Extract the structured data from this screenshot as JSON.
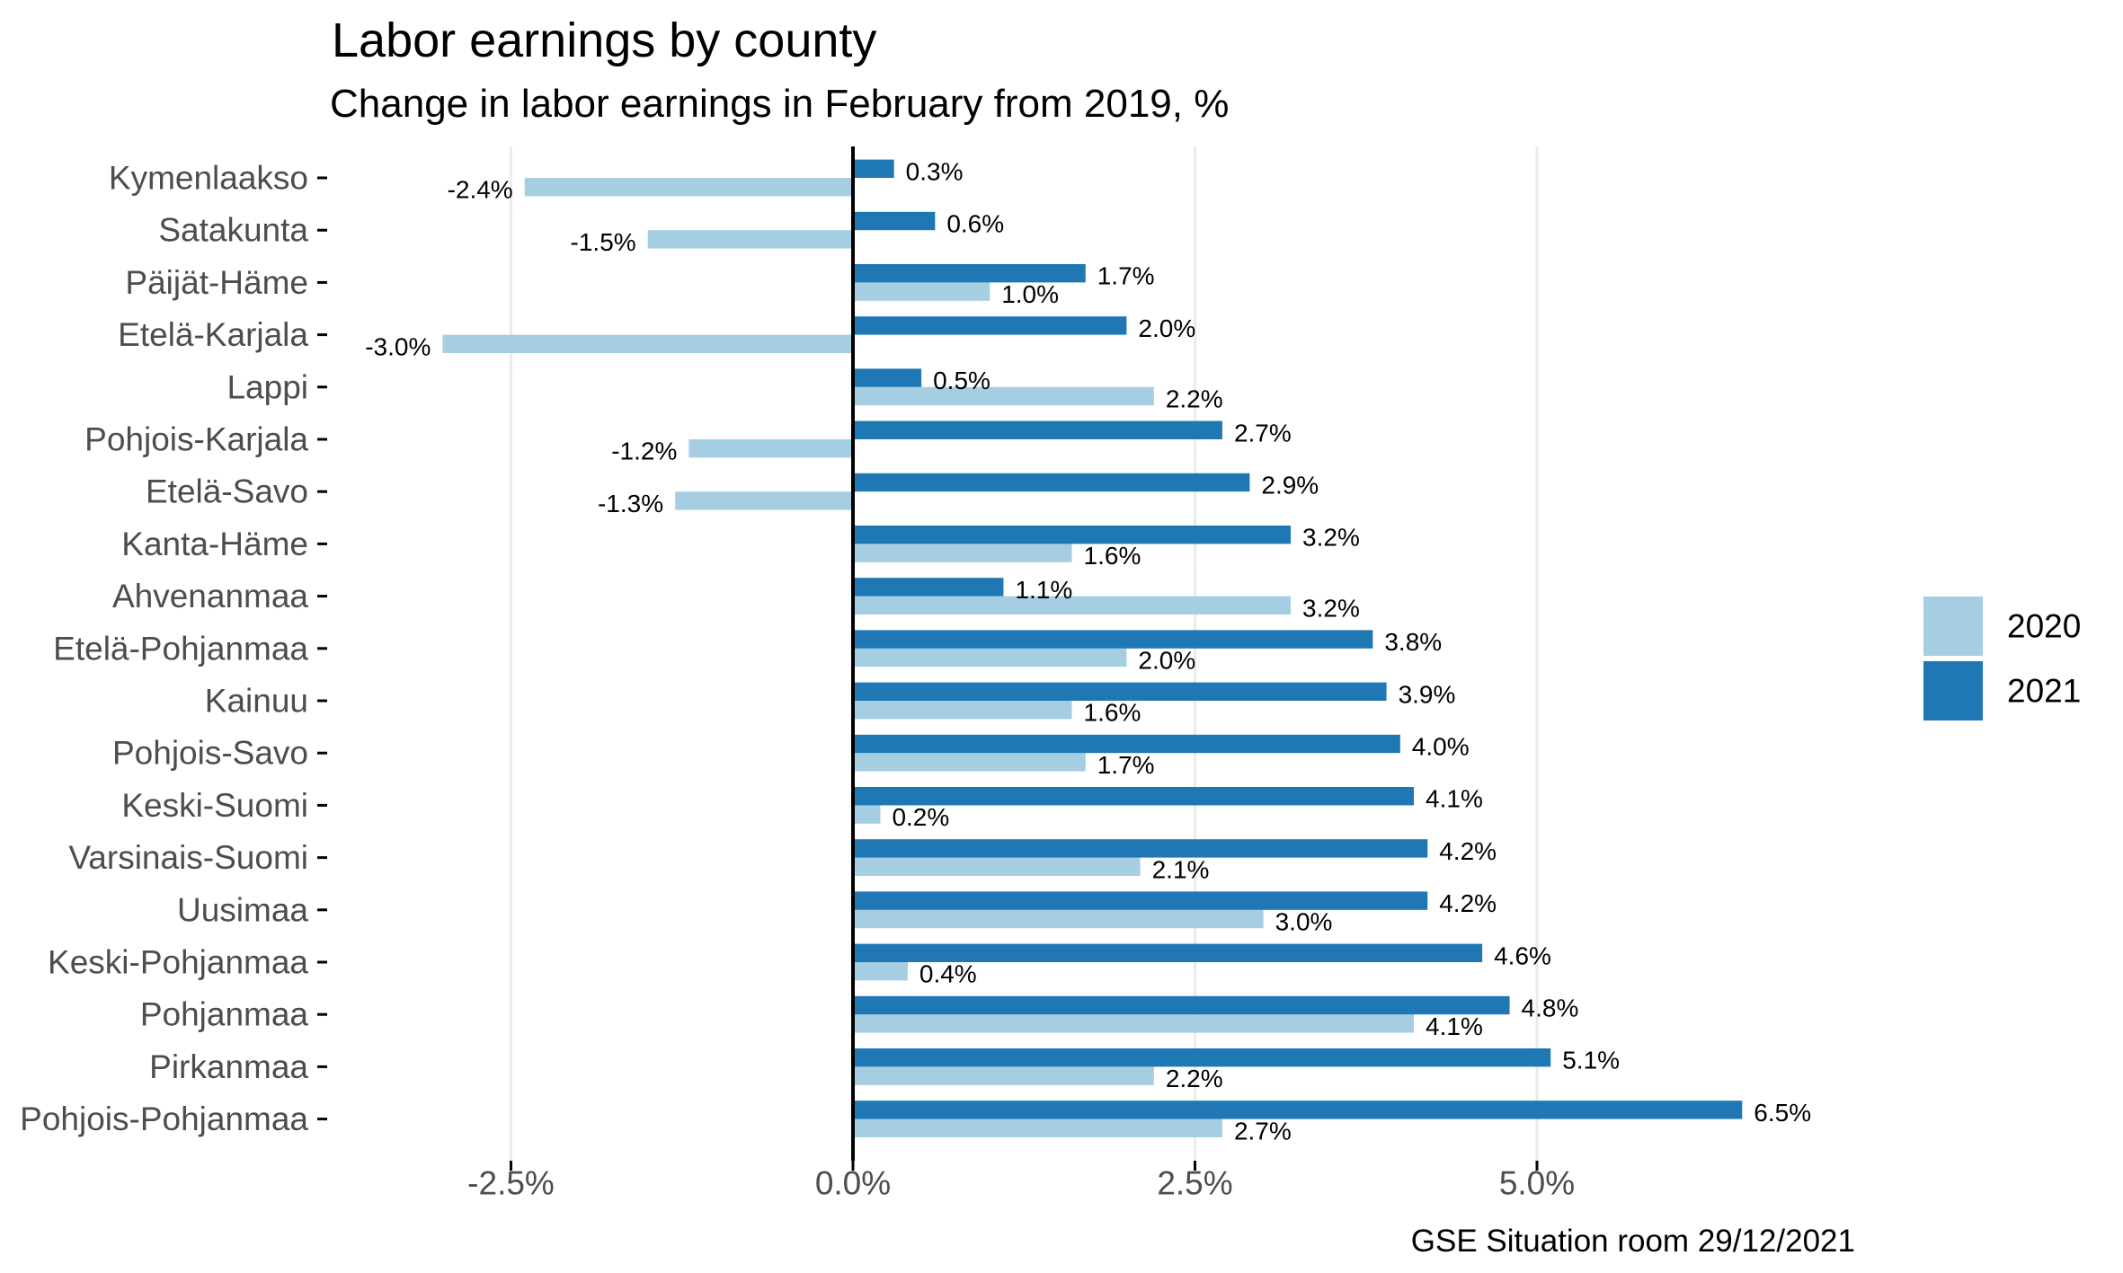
{
  "chart_data": {
    "type": "bar",
    "orientation": "horizontal",
    "title": "Labor earnings by county",
    "subtitle": "Change in labor earnings in February from 2019, %",
    "caption": "GSE Situation room 29/12/2021",
    "xlabel": "",
    "ylabel": "",
    "xlim": [
      -3.4,
      7.0
    ],
    "x_ticks": [
      -2.5,
      0.0,
      2.5,
      5.0
    ],
    "x_tick_labels": [
      "-2.5%",
      "0.0%",
      "2.5%",
      "5.0%"
    ],
    "grid": "vertical major gridlines",
    "legend_position": "right",
    "categories": [
      "Kymenlaakso",
      "Satakunta",
      "Päijät-Häme",
      "Etelä-Karjala",
      "Lappi",
      "Pohjois-Karjala",
      "Etelä-Savo",
      "Kanta-Häme",
      "Ahvenanmaa",
      "Etelä-Pohjanmaa",
      "Kainuu",
      "Pohjois-Savo",
      "Keski-Suomi",
      "Varsinais-Suomi",
      "Uusimaa",
      "Keski-Pohjanmaa",
      "Pohjanmaa",
      "Pirkanmaa",
      "Pohjois-Pohjanmaa"
    ],
    "series": [
      {
        "name": "2020",
        "color": "#a6cee3",
        "values": [
          -2.4,
          -1.5,
          1.0,
          -3.0,
          2.2,
          -1.2,
          -1.3,
          1.6,
          3.2,
          2.0,
          1.6,
          1.7,
          0.2,
          2.1,
          3.0,
          0.4,
          4.1,
          2.2,
          2.7
        ],
        "labels": [
          "-2.4%",
          "-1.5%",
          "1.0%",
          "-3.0%",
          "2.2%",
          "-1.2%",
          "-1.3%",
          "1.6%",
          "3.2%",
          "2.0%",
          "1.6%",
          "1.7%",
          "0.2%",
          "2.1%",
          "3.0%",
          "0.4%",
          "4.1%",
          "2.2%",
          "2.7%"
        ]
      },
      {
        "name": "2021",
        "color": "#1f78b4",
        "values": [
          0.3,
          0.6,
          1.7,
          2.0,
          0.5,
          2.7,
          2.9,
          3.2,
          1.1,
          3.8,
          3.9,
          4.0,
          4.1,
          4.2,
          4.2,
          4.6,
          4.8,
          5.1,
          6.5
        ],
        "labels": [
          "0.3%",
          "0.6%",
          "1.7%",
          "2.0%",
          "0.5%",
          "2.7%",
          "2.9%",
          "3.2%",
          "1.1%",
          "3.8%",
          "3.9%",
          "4.0%",
          "4.1%",
          "4.2%",
          "4.2%",
          "4.6%",
          "4.8%",
          "5.1%",
          "6.5%"
        ]
      }
    ],
    "legend": [
      {
        "label": "2020",
        "color": "#a6cee3"
      },
      {
        "label": "2021",
        "color": "#1f78b4"
      }
    ]
  }
}
